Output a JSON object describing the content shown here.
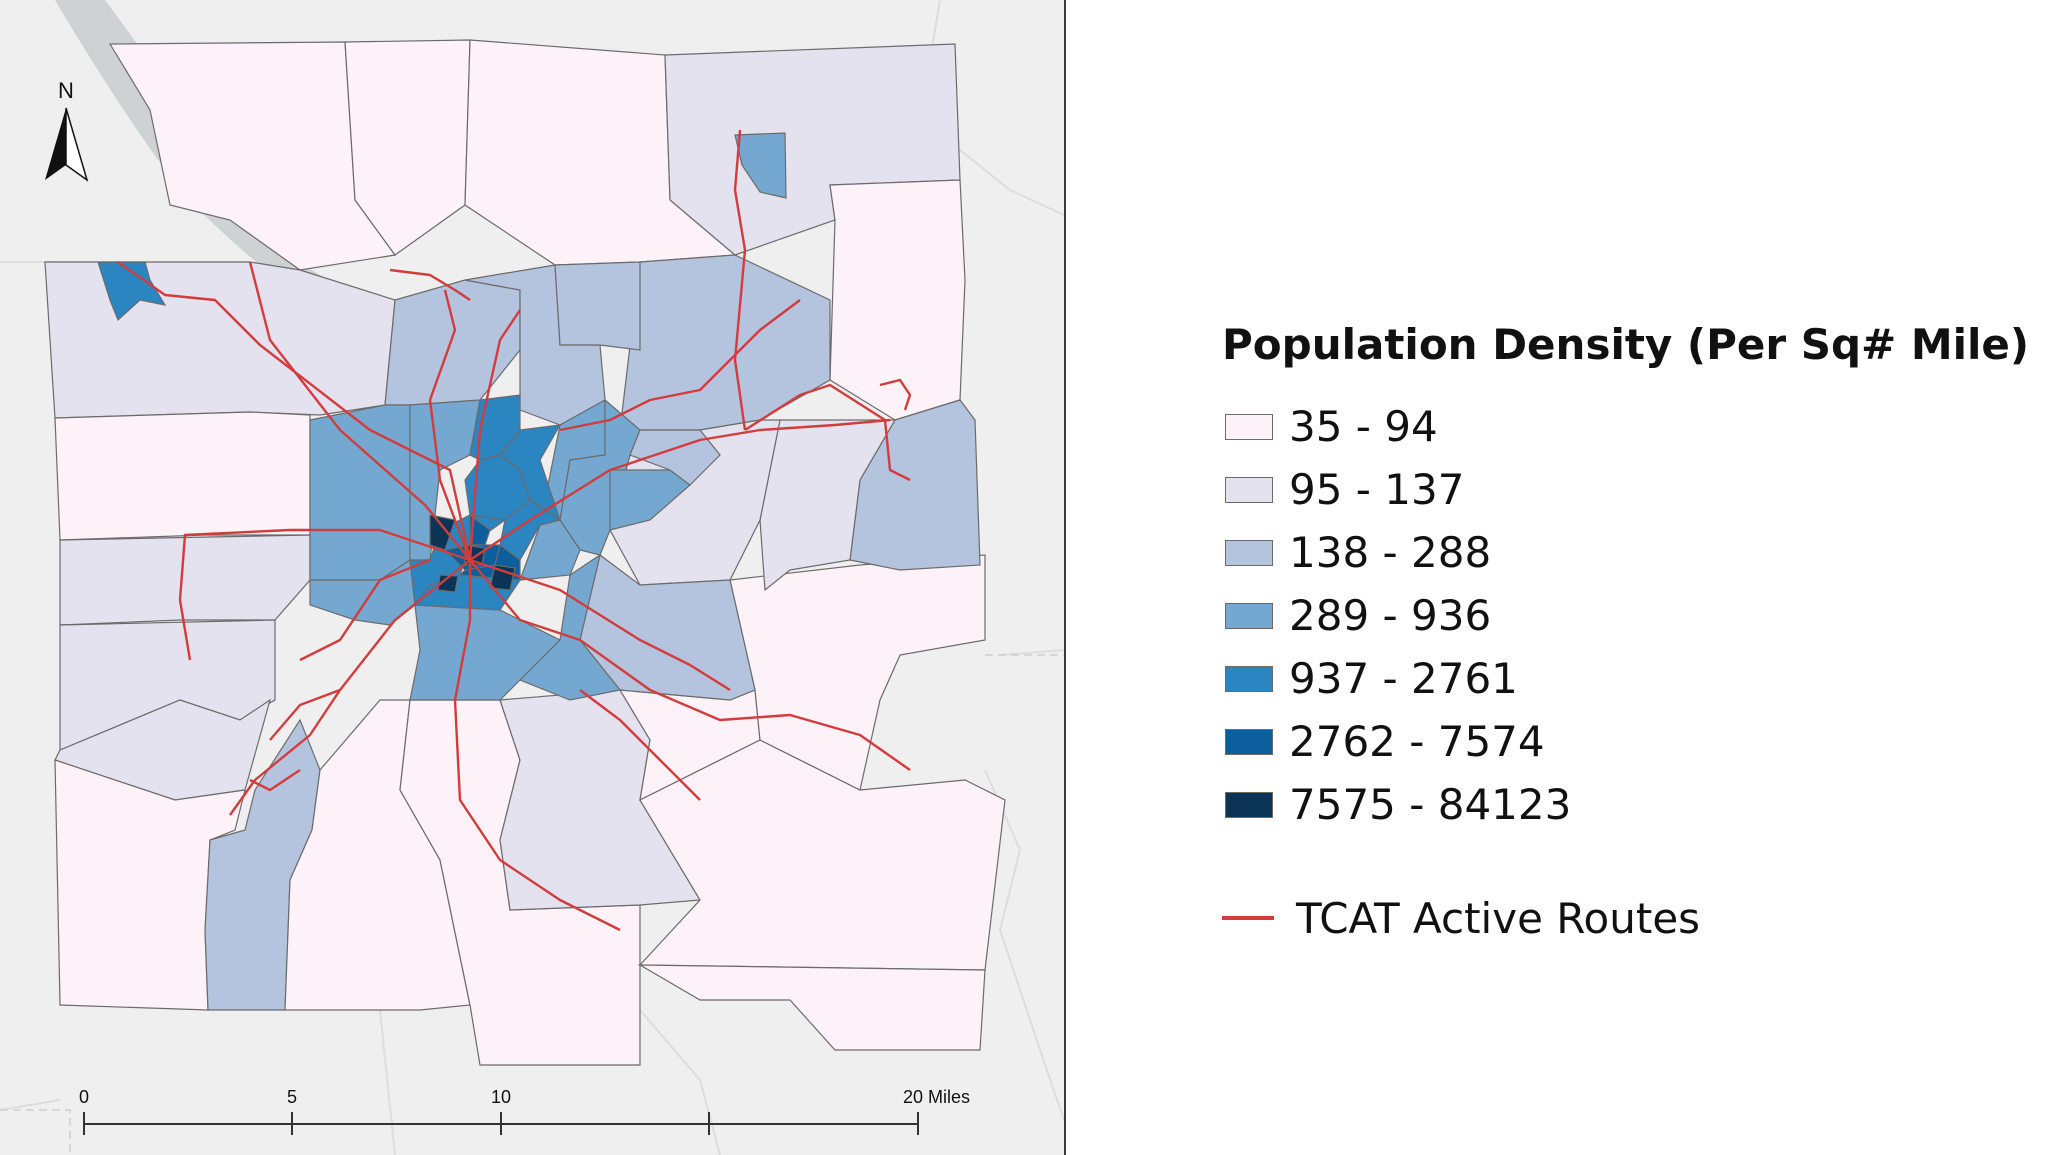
{
  "colors": {
    "route": "#d23c3c",
    "classes": [
      "#fdf2f7",
      "#e4e2ee",
      "#b5c4de",
      "#74a8d1",
      "#2a85c1",
      "#0c5e9d",
      "#0b3456"
    ]
  },
  "north_arrow": {
    "label": "N"
  },
  "scale_bar": {
    "labels": [
      "0",
      "5",
      "10",
      "20 Miles"
    ]
  },
  "legend": {
    "title": "Population Density (Per Sq# Mile)",
    "classes": [
      {
        "label": "35 - 94"
      },
      {
        "label": "95 - 137"
      },
      {
        "label": "138 - 288"
      },
      {
        "label": "289 - 936"
      },
      {
        "label": "937 - 2761"
      },
      {
        "label": "2762 - 7574"
      },
      {
        "label": "7575 - 84123"
      }
    ],
    "routes_label": "TCAT Active Routes"
  }
}
